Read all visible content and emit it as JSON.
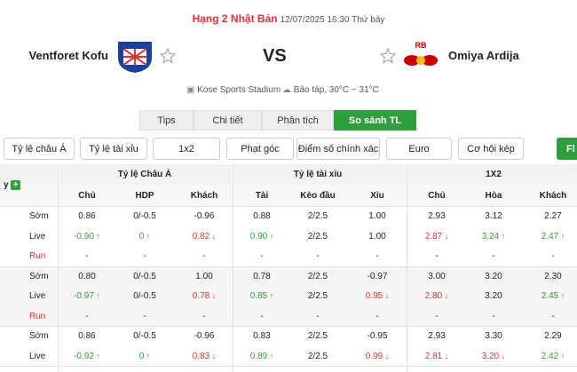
{
  "header": {
    "league": "Hạng 2 Nhật Bản",
    "datetime": "12/07/2025 16:30 Thứ bảy"
  },
  "match": {
    "home": "Ventforet Kofu",
    "vs": "VS",
    "away": "Omiya Ardija",
    "away_badge": "RB"
  },
  "info": {
    "venue": "Kose Sports Stadium",
    "weather": "Bão táp, 30°C ~ 31°C"
  },
  "tabs": {
    "items": [
      "Tips",
      "Chi tiết",
      "Phân tích",
      "So sánh TL"
    ],
    "active": 3
  },
  "filters": {
    "items": [
      "Tỷ lệ châu Á",
      "Tỷ lệ tài xỉu",
      "1x2",
      "Phạt góc",
      "Điểm số chính xác",
      "Euro Handicap",
      "Cơ hội kép"
    ],
    "action": "Fl"
  },
  "table": {
    "left_label": "y",
    "groups": [
      "Tỷ lệ Châu Á",
      "Tỷ lệ tài xỉu",
      "1X2"
    ],
    "columns": [
      "Chủ",
      "HDP",
      "Khách",
      "Tài",
      "Kèo đầu",
      "Xỉu",
      "Chủ",
      "Hòa",
      "Khách"
    ],
    "blocks": [
      {
        "rows": [
          {
            "label": "Sớm",
            "cells": [
              {
                "t": "0.86"
              },
              {
                "t": "0/-0.5"
              },
              {
                "t": "-0.96"
              },
              {
                "t": "0.88"
              },
              {
                "t": "2/2.5"
              },
              {
                "t": "1.00"
              },
              {
                "t": "2.93"
              },
              {
                "t": "3.12"
              },
              {
                "t": "2.27"
              }
            ]
          },
          {
            "label": "Live",
            "cells": [
              {
                "t": "-0.90",
                "d": "up"
              },
              {
                "t": "0",
                "d": "up"
              },
              {
                "t": "0.82",
                "d": "down"
              },
              {
                "t": "0.90",
                "d": "up"
              },
              {
                "t": "2/2.5"
              },
              {
                "t": "1.00"
              },
              {
                "t": "2.87",
                "d": "down"
              },
              {
                "t": "3.24",
                "d": "up"
              },
              {
                "t": "2.47",
                "d": "up"
              }
            ]
          },
          {
            "label": "Run",
            "cells": [
              {
                "t": "-"
              },
              {
                "t": "-"
              },
              {
                "t": "-"
              },
              {
                "t": "-"
              },
              {
                "t": "-"
              },
              {
                "t": "-"
              },
              {
                "t": "-"
              },
              {
                "t": "-"
              },
              {
                "t": "-"
              }
            ]
          }
        ]
      },
      {
        "rows": [
          {
            "label": "Sớm",
            "cells": [
              {
                "t": "0.80"
              },
              {
                "t": "0/-0.5"
              },
              {
                "t": "1.00"
              },
              {
                "t": "0.78"
              },
              {
                "t": "2/2.5"
              },
              {
                "t": "-0.97"
              },
              {
                "t": "3.00"
              },
              {
                "t": "3.20"
              },
              {
                "t": "2.30"
              }
            ]
          },
          {
            "label": "Live",
            "cells": [
              {
                "t": "-0.97",
                "d": "up"
              },
              {
                "t": "0/-0.5"
              },
              {
                "t": "0.78",
                "d": "down"
              },
              {
                "t": "0.85",
                "d": "up"
              },
              {
                "t": "2/2.5"
              },
              {
                "t": "0.95",
                "d": "down"
              },
              {
                "t": "2.80",
                "d": "down"
              },
              {
                "t": "3.20"
              },
              {
                "t": "2.45",
                "d": "up"
              }
            ]
          },
          {
            "label": "Run",
            "cells": [
              {
                "t": "-"
              },
              {
                "t": "-"
              },
              {
                "t": "-"
              },
              {
                "t": "-"
              },
              {
                "t": "-"
              },
              {
                "t": "-"
              },
              {
                "t": "-"
              },
              {
                "t": "-"
              },
              {
                "t": "-"
              }
            ]
          }
        ]
      },
      {
        "rows": [
          {
            "label": "Sớm",
            "cells": [
              {
                "t": "0.86"
              },
              {
                "t": "0/-0.5"
              },
              {
                "t": "-0.96"
              },
              {
                "t": "0.83"
              },
              {
                "t": "2/2.5"
              },
              {
                "t": "-0.95"
              },
              {
                "t": "2.93"
              },
              {
                "t": "3.30"
              },
              {
                "t": "2.29"
              }
            ]
          },
          {
            "label": "Live",
            "cells": [
              {
                "t": "-0.92",
                "d": "up"
              },
              {
                "t": "0",
                "d": "up"
              },
              {
                "t": "0.83",
                "d": "down"
              },
              {
                "t": "0.89",
                "d": "up"
              },
              {
                "t": "2/2.5"
              },
              {
                "t": "0.99",
                "d": "down"
              },
              {
                "t": "2.81",
                "d": "down"
              },
              {
                "t": "3.20",
                "d": "down"
              },
              {
                "t": "2.42",
                "d": "up"
              }
            ]
          }
        ]
      }
    ]
  }
}
